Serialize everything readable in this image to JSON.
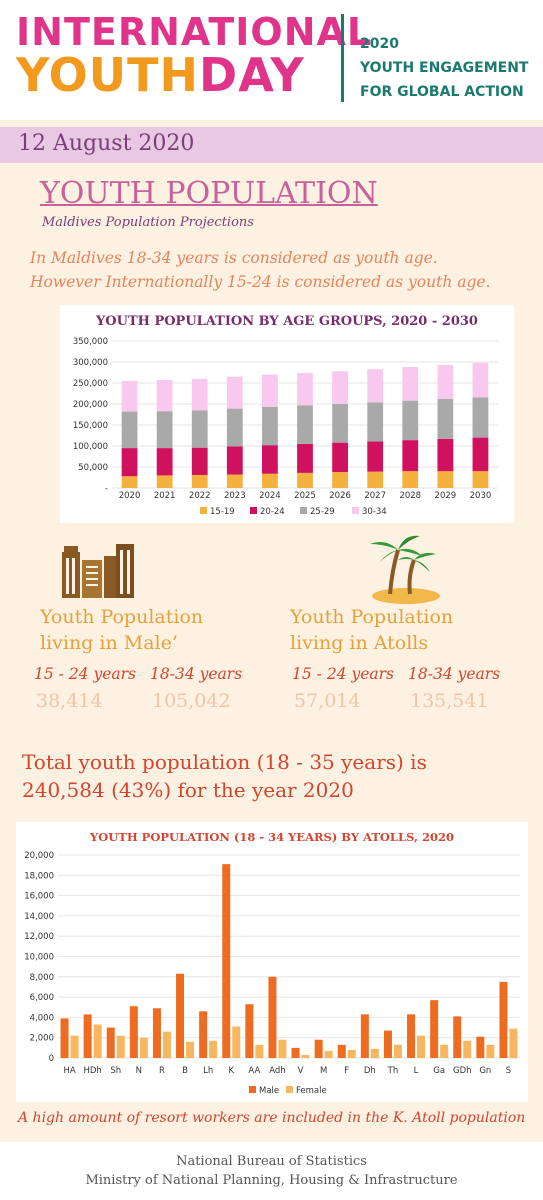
{
  "header": {
    "brand_line1": "INTERNATIONAL",
    "brand_line2_a": "YOUTH",
    "brand_line2_b": "DAY",
    "tagline": [
      "2020",
      "YOUTH ENGAGEMENT",
      "FOR GLOBAL ACTION"
    ]
  },
  "date": "12 August 2020",
  "title": "YOUTH POPULATION",
  "subtitle": "Maldives Population Projections",
  "intro": [
    "In Maldives 18-34 years is considered as youth age.",
    "However Internationally 15-24 is considered as youth age."
  ],
  "male_block": {
    "icon": "city-buildings-icon",
    "heading": [
      "Youth Population",
      "living in Male’"
    ],
    "groups": [
      {
        "label": "15 - 24 years",
        "value": "38,414"
      },
      {
        "label": "18-34  years",
        "value": "105,042"
      }
    ]
  },
  "atoll_block": {
    "icon": "palm-island-icon",
    "heading": [
      "Youth Population",
      "living in Atolls"
    ],
    "groups": [
      {
        "label": "15 - 24 years",
        "value": "57,014"
      },
      {
        "label": "18-34  years",
        "value": "135,541"
      }
    ]
  },
  "total": [
    "Total youth population (18 - 35 years) is",
    "240,584 (43%) for the year 2020"
  ],
  "note": "A high amount of resort workers are included in the K. Atoll population",
  "footer": [
    "National Bureau of Statistics",
    "Ministry of National Planning, Housing & Infrastructure"
  ],
  "colors": {
    "s15_19": "#f4b13e",
    "s20_24": "#d0115e",
    "s25_29": "#a9a9a9",
    "s30_34": "#f9c8ee",
    "male": "#ee6b22",
    "female": "#f7b760"
  },
  "chart_data": [
    {
      "type": "bar",
      "stacked": true,
      "title": "YOUTH POPULATION BY AGE GROUPS, 2020  - 2030",
      "categories": [
        "2020",
        "2021",
        "2022",
        "2023",
        "2024",
        "2025",
        "2026",
        "2027",
        "2028",
        "2029",
        "2030"
      ],
      "series": [
        {
          "name": "15-19",
          "values": [
            28000,
            30000,
            31000,
            32000,
            34000,
            36000,
            38000,
            39000,
            40000,
            40000,
            40000
          ]
        },
        {
          "name": "20-24",
          "values": [
            67000,
            65000,
            65000,
            67000,
            68000,
            69000,
            70000,
            72000,
            74000,
            77000,
            80000
          ]
        },
        {
          "name": "25-29",
          "values": [
            87000,
            88000,
            89000,
            90000,
            91000,
            92000,
            92000,
            93000,
            94000,
            95000,
            96000
          ]
        },
        {
          "name": "30-34",
          "values": [
            73000,
            74000,
            75000,
            76000,
            77000,
            77000,
            78000,
            79000,
            80000,
            81000,
            82000
          ]
        }
      ],
      "yticks": [
        "-",
        "50,000",
        "100,000",
        "150,000",
        "200,000",
        "250,000",
        "300,000",
        "350,000"
      ],
      "ylim": [
        0,
        350000
      ],
      "legend": "bottom",
      "grid": true
    },
    {
      "type": "bar",
      "title": "YOUTH POPULATION (18 - 34 YEARS) BY ATOLLS, 2020",
      "categories": [
        "HA",
        "HDh",
        "Sh",
        "N",
        "R",
        "B",
        "Lh",
        "K",
        "AA",
        "Adh",
        "V",
        "M",
        "F",
        "Dh",
        "Th",
        "L",
        "Ga",
        "GDh",
        "Gn",
        "S"
      ],
      "series": [
        {
          "name": "Male",
          "values": [
            3900,
            4300,
            3000,
            5100,
            4900,
            8300,
            4600,
            19100,
            5300,
            8000,
            1000,
            1800,
            1300,
            4300,
            2700,
            4300,
            5700,
            4100,
            2100,
            7500
          ]
        },
        {
          "name": "Female",
          "values": [
            2200,
            3300,
            2200,
            2000,
            2600,
            1600,
            1700,
            3100,
            1300,
            1800,
            300,
            700,
            800,
            900,
            1300,
            2200,
            1300,
            1700,
            1300,
            2900
          ]
        }
      ],
      "yticks": [
        "0",
        "2,000",
        "4,000",
        "6,000",
        "8,000",
        "10,000",
        "12,000",
        "14,000",
        "16,000",
        "18,000",
        "20,000"
      ],
      "ylim": [
        0,
        20000
      ],
      "legend": "bottom",
      "grid": true
    }
  ]
}
